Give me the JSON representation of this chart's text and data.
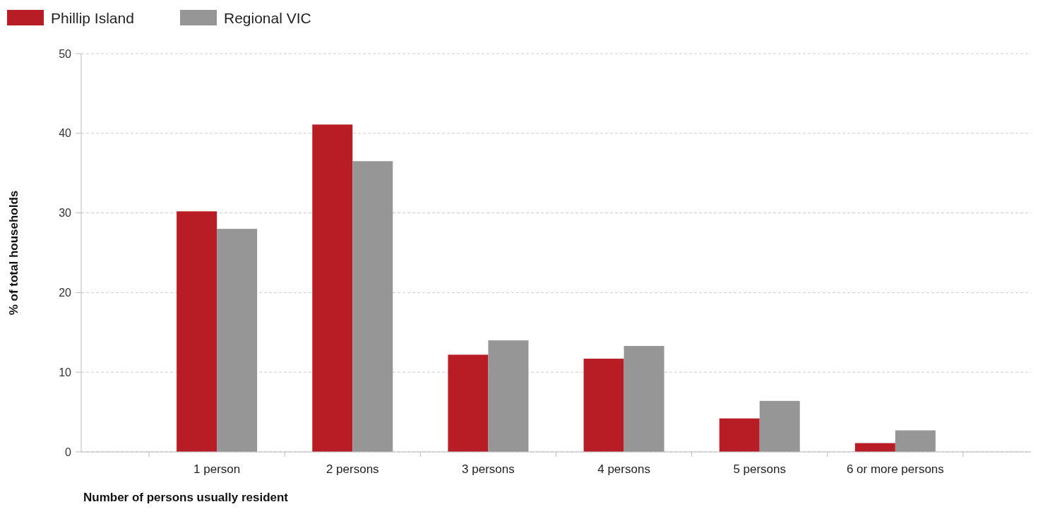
{
  "chart_data": {
    "type": "bar",
    "xlabel": "Number of persons usually resident",
    "ylabel": "% of total households",
    "categories": [
      "1 person",
      "2 persons",
      "3 persons",
      "4 persons",
      "5 persons",
      "6 or more persons"
    ],
    "series": [
      {
        "name": "Phillip Island",
        "color": "#b81c24",
        "values": [
          30.2,
          41.1,
          12.2,
          11.7,
          4.2,
          1.1
        ]
      },
      {
        "name": "Regional VIC",
        "color": "#969696",
        "values": [
          28.0,
          36.5,
          14.0,
          13.3,
          6.4,
          2.7
        ]
      }
    ],
    "ylim": [
      0,
      50
    ],
    "yticks": [
      0,
      10,
      20,
      30,
      40,
      50
    ],
    "grid": "y",
    "legend": "top left"
  }
}
